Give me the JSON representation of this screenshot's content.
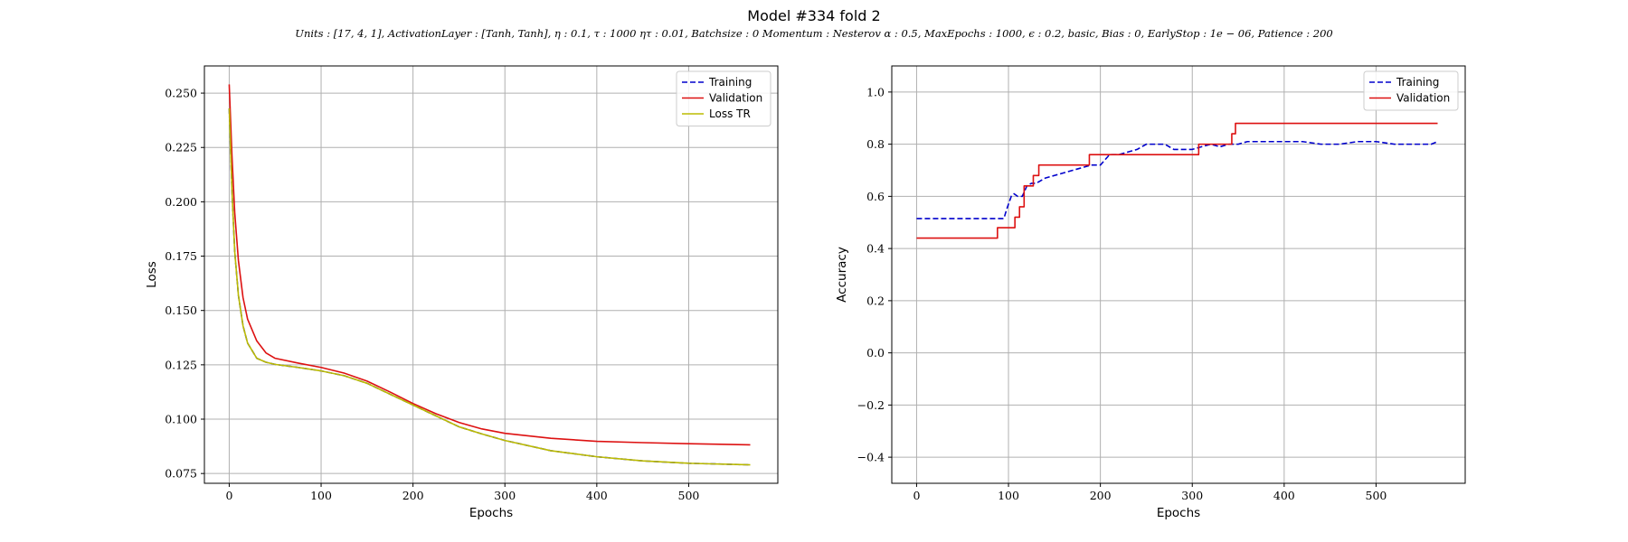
{
  "figure": {
    "title": "Model #334 fold 2",
    "subtitle": "Units : [17, 4, 1], ActivationLayer : [Tanh, Tanh], η : 0.1, τ : 1000 ητ : 0.01, Batchsize : 0 Momentum : Nesterov α : 0.5, MaxEpochs : 1000, ϵ : 0.2, basic, Bias : 0, EarlyStop : 1e − 06, Patience : 200"
  },
  "chart_data": [
    {
      "type": "line",
      "xlabel": "Epochs",
      "ylabel": "Loss",
      "xlim": [
        -27,
        597
      ],
      "ylim": [
        0.0705,
        0.2625
      ],
      "xticks": [
        0,
        100,
        200,
        300,
        400,
        500
      ],
      "xtick_labels": [
        "0",
        "100",
        "200",
        "300",
        "400",
        "500"
      ],
      "yticks": [
        0.075,
        0.1,
        0.125,
        0.15,
        0.175,
        0.2,
        0.225,
        0.25
      ],
      "ytick_labels": [
        "0.075",
        "0.100",
        "0.125",
        "0.150",
        "0.175",
        "0.200",
        "0.225",
        "0.250"
      ],
      "grid": true,
      "legend_position": "top-right",
      "series": [
        {
          "name": "Training",
          "style": "dashed",
          "color": "#0000cc",
          "x": [
            0,
            3,
            6,
            10,
            15,
            20,
            30,
            40,
            50,
            75,
            100,
            125,
            150,
            175,
            200,
            225,
            250,
            275,
            300,
            350,
            400,
            450,
            500,
            567
          ],
          "y": [
            0.243,
            0.205,
            0.177,
            0.157,
            0.143,
            0.135,
            0.128,
            0.1262,
            0.1252,
            0.1238,
            0.1222,
            0.12,
            0.1165,
            0.1115,
            0.1065,
            0.1015,
            0.0965,
            0.0932,
            0.0902,
            0.0855,
            0.0827,
            0.0808,
            0.0797,
            0.079
          ]
        },
        {
          "name": "Validation",
          "style": "solid",
          "color": "#dd1111",
          "x": [
            0,
            3,
            6,
            10,
            15,
            20,
            30,
            40,
            50,
            75,
            100,
            125,
            150,
            175,
            200,
            225,
            250,
            275,
            300,
            350,
            400,
            450,
            500,
            567
          ],
          "y": [
            0.254,
            0.221,
            0.195,
            0.173,
            0.156,
            0.146,
            0.136,
            0.1305,
            0.128,
            0.1258,
            0.1238,
            0.1212,
            0.1175,
            0.1125,
            0.1072,
            0.1025,
            0.0985,
            0.0955,
            0.0935,
            0.0912,
            0.0898,
            0.0892,
            0.0887,
            0.0882
          ]
        },
        {
          "name": "Loss TR",
          "style": "solid",
          "color": "#bbbb00",
          "x": [
            0,
            3,
            6,
            10,
            15,
            20,
            30,
            40,
            50,
            75,
            100,
            125,
            150,
            175,
            200,
            225,
            250,
            275,
            300,
            350,
            400,
            450,
            500,
            567
          ],
          "y": [
            0.243,
            0.205,
            0.177,
            0.157,
            0.143,
            0.135,
            0.128,
            0.1262,
            0.1252,
            0.1238,
            0.1222,
            0.12,
            0.1165,
            0.1115,
            0.1065,
            0.1015,
            0.0965,
            0.0932,
            0.0902,
            0.0855,
            0.0827,
            0.0808,
            0.0797,
            0.079
          ]
        }
      ]
    },
    {
      "type": "line",
      "xlabel": "Epochs",
      "ylabel": "Accuracy",
      "xlim": [
        -27,
        597
      ],
      "ylim": [
        -0.5,
        1.1
      ],
      "xticks": [
        0,
        100,
        200,
        300,
        400,
        500
      ],
      "xtick_labels": [
        "0",
        "100",
        "200",
        "300",
        "400",
        "500"
      ],
      "yticks": [
        -0.4,
        -0.2,
        0.0,
        0.2,
        0.4,
        0.6,
        0.8,
        1.0
      ],
      "ytick_labels": [
        "−0.4",
        "−0.2",
        "0.0",
        "0.2",
        "0.4",
        "0.6",
        "0.8",
        "1.0"
      ],
      "grid": true,
      "legend_position": "top-right",
      "series": [
        {
          "name": "Training",
          "style": "dashed",
          "color": "#0000cc",
          "x": [
            0,
            95,
            98,
            100,
            103,
            106,
            110,
            115,
            120,
            125,
            130,
            140,
            150,
            160,
            170,
            180,
            190,
            200,
            210,
            220,
            230,
            240,
            250,
            260,
            270,
            280,
            290,
            300,
            310,
            320,
            330,
            340,
            350,
            360,
            370,
            380,
            400,
            420,
            440,
            460,
            480,
            500,
            520,
            540,
            560,
            567
          ],
          "y": [
            0.515,
            0.515,
            0.55,
            0.57,
            0.6,
            0.61,
            0.6,
            0.6,
            0.64,
            0.65,
            0.65,
            0.67,
            0.68,
            0.69,
            0.7,
            0.71,
            0.72,
            0.72,
            0.76,
            0.76,
            0.77,
            0.78,
            0.8,
            0.8,
            0.8,
            0.78,
            0.78,
            0.78,
            0.79,
            0.8,
            0.79,
            0.8,
            0.8,
            0.81,
            0.81,
            0.81,
            0.81,
            0.81,
            0.8,
            0.8,
            0.81,
            0.81,
            0.8,
            0.8,
            0.8,
            0.81
          ]
        },
        {
          "name": "Validation",
          "style": "step",
          "color": "#dd1111",
          "x": [
            0,
            88,
            88,
            107,
            107,
            112,
            112,
            117,
            117,
            127,
            127,
            133,
            133,
            188,
            188,
            307,
            307,
            343,
            343,
            347,
            347,
            567
          ],
          "y": [
            0.44,
            0.44,
            0.48,
            0.48,
            0.52,
            0.52,
            0.56,
            0.56,
            0.64,
            0.64,
            0.68,
            0.68,
            0.72,
            0.72,
            0.76,
            0.76,
            0.8,
            0.8,
            0.84,
            0.84,
            0.88,
            0.88
          ]
        }
      ]
    }
  ]
}
